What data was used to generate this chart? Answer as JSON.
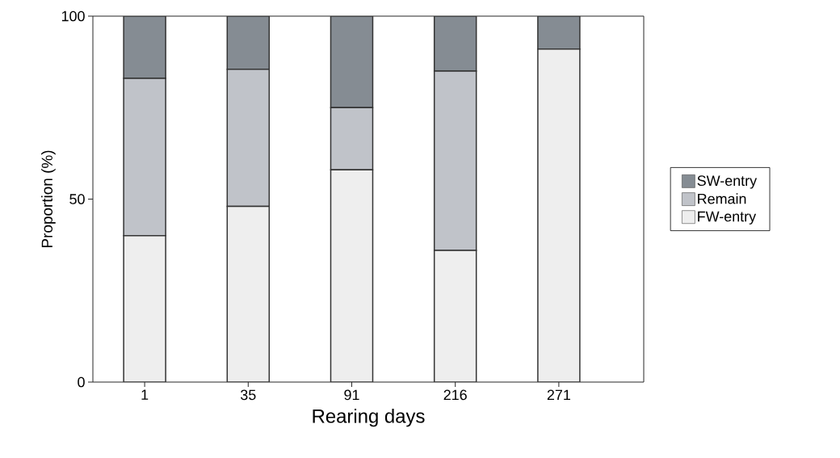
{
  "chart_data": {
    "type": "bar",
    "stacked": true,
    "xlabel": "Rearing days",
    "ylabel": "Proportion (%)",
    "categories": [
      "1",
      "35",
      "91",
      "216",
      "271"
    ],
    "series": [
      {
        "name": "FW-entry",
        "color": "#eeeeee",
        "values": [
          40,
          48,
          58,
          36,
          91
        ]
      },
      {
        "name": "Remain",
        "color": "#c0c3c9",
        "values": [
          43,
          37.5,
          17,
          49,
          0
        ]
      },
      {
        "name": "SW-entry",
        "color": "#858c93",
        "values": [
          17,
          14.5,
          25,
          15,
          9
        ]
      }
    ],
    "ylim": [
      0,
      100
    ],
    "yticks": [
      0,
      50,
      100
    ],
    "grid": false,
    "legend": "right"
  }
}
